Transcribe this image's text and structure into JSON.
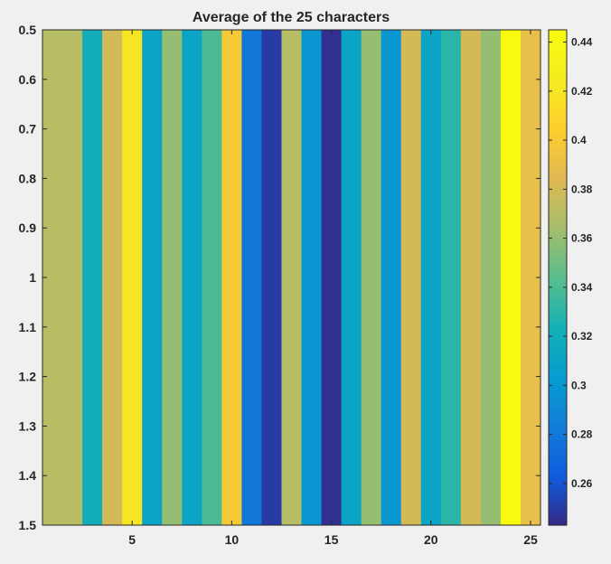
{
  "chart_data": {
    "type": "heatmap",
    "title": "Average of the 25 characters",
    "xlabel": "",
    "ylabel": "",
    "x": [
      1,
      2,
      3,
      4,
      5,
      6,
      7,
      8,
      9,
      10,
      11,
      12,
      13,
      14,
      15,
      16,
      17,
      18,
      19,
      20,
      21,
      22,
      23,
      24,
      25
    ],
    "values": [
      0.37,
      0.37,
      0.32,
      0.38,
      0.42,
      0.31,
      0.36,
      0.31,
      0.34,
      0.4,
      0.28,
      0.25,
      0.37,
      0.3,
      0.245,
      0.31,
      0.36,
      0.3,
      0.38,
      0.31,
      0.33,
      0.38,
      0.36,
      0.445,
      0.39
    ],
    "xlim": [
      0.5,
      25.5
    ],
    "ylim": [
      0.5,
      1.5
    ],
    "x_ticks": [
      5,
      10,
      15,
      20,
      25
    ],
    "y_ticks": [
      0.5,
      0.6,
      0.7,
      0.8,
      0.9,
      1,
      1.1,
      1.2,
      1.3,
      1.4,
      1.5
    ],
    "y_tick_labels": [
      "0.5",
      "0.6",
      "0.7",
      "0.8",
      "0.9",
      "1",
      "1.1",
      "1.2",
      "1.3",
      "1.4",
      "1.5"
    ],
    "y_reversed": true,
    "colormap": "parula",
    "colorbar": {
      "limits": [
        0.243,
        0.445
      ],
      "ticks": [
        0.26,
        0.28,
        0.3,
        0.32,
        0.34,
        0.36,
        0.38,
        0.4,
        0.42,
        0.44
      ],
      "tick_labels": [
        "0.26",
        "0.28",
        "0.3",
        "0.32",
        "0.34",
        "0.36",
        "0.38",
        "0.4",
        "0.42",
        "0.44"
      ],
      "location": "right"
    },
    "grid": false,
    "colors": {
      "background": "#f0f0f0",
      "axes_border": "#262626",
      "text": "#262626"
    }
  }
}
